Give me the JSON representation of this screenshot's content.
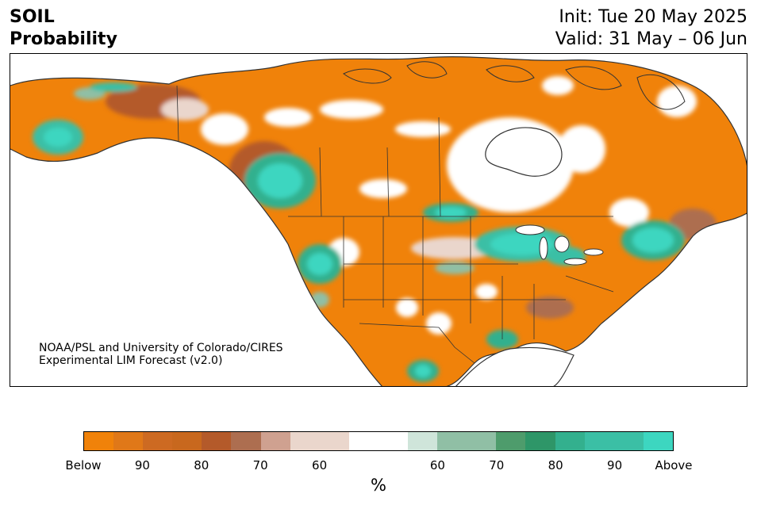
{
  "header": {
    "title_line1": "SOIL",
    "title_line2": "Probability",
    "init_text": "Init: Tue 20 May 2025",
    "valid_text": "Valid: 31 May – 06 Jun"
  },
  "credit": {
    "line1": "NOAA/PSL and University of Colorado/CIRES",
    "line2": "Experimental LIM Forecast (v2.0)"
  },
  "map": {
    "region": "North America",
    "below_color": "#f0820a",
    "above_color": "#3dd6c0",
    "outline_color": "#333333"
  },
  "colorbar": {
    "units": "%",
    "colors": [
      "#f0820a",
      "#e07818",
      "#cd6a22",
      "#c8681e",
      "#b45a2a",
      "#ad6e50",
      "#cfa190",
      "#ead6cc",
      "#ead6cc",
      "#ffffff",
      "#ffffff",
      "#cfe5da",
      "#90bfa5",
      "#90bfa5",
      "#4e9c6c",
      "#2e9668",
      "#33b08e",
      "#3bbfa5",
      "#3bbfa5",
      "#3dd6c0"
    ],
    "tick_labels": [
      "Below",
      "90",
      "80",
      "70",
      "60",
      "60",
      "70",
      "80",
      "90",
      "Above"
    ],
    "tick_segment_index": [
      0,
      2,
      4,
      6,
      8,
      12,
      14,
      16,
      18,
      20
    ]
  }
}
